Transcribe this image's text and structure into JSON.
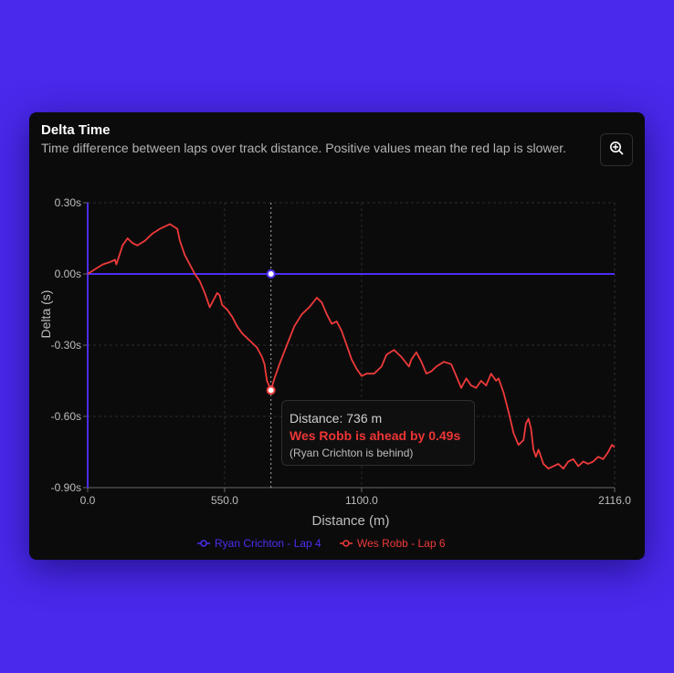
{
  "card": {
    "title": "Delta Time",
    "description": "Time difference between laps over track distance. Positive values mean the red lap is slower."
  },
  "icons": {
    "zoom": "zoom-in-icon"
  },
  "colors": {
    "background": "#4a28ec",
    "card": "#0b0b0c",
    "blue": "#4a2ff0",
    "red": "#ef3a3a",
    "grid": "#2c2c2c",
    "tick": "#bdbdbd"
  },
  "tooltip": {
    "distance": "Distance: 736 m",
    "ahead": "Wes Robb is ahead by 0.49s",
    "behind": "(Ryan Crichton is behind)"
  },
  "chart_data": {
    "type": "line",
    "title": "",
    "xlabel": "Distance (m)",
    "ylabel": "Delta (s)",
    "xlim": [
      0,
      2116
    ],
    "ylim": [
      -0.9,
      0.3
    ],
    "x_ticks": [
      0,
      550,
      1100,
      2116
    ],
    "x_tick_labels": [
      "0.0",
      "550.0",
      "1100.0",
      "2116.0"
    ],
    "y_ticks": [
      0.3,
      0,
      -0.3,
      -0.6,
      -0.9
    ],
    "y_tick_labels": [
      "0.30s",
      "0.00s",
      "-0.30s",
      "-0.60s",
      "-0.90s"
    ],
    "grid": true,
    "legend_position": "bottom-center",
    "hover_x": 736,
    "series": [
      {
        "name": "Ryan Crichton - Lap 4",
        "color": "#4a2ff0",
        "x": [
          0,
          2116
        ],
        "y": [
          0,
          0
        ]
      },
      {
        "name": "Wes Robb - Lap 6",
        "color": "#ef3a3a",
        "x": [
          0,
          30,
          60,
          90,
          110,
          115,
          140,
          160,
          180,
          200,
          230,
          260,
          290,
          330,
          360,
          370,
          390,
          410,
          430,
          450,
          470,
          490,
          510,
          520,
          530,
          540,
          560,
          580,
          600,
          620,
          640,
          660,
          680,
          700,
          710,
          720,
          736,
          750,
          770,
          800,
          830,
          860,
          890,
          920,
          940,
          960,
          980,
          1000,
          1020,
          1040,
          1060,
          1080,
          1100,
          1120,
          1150,
          1180,
          1200,
          1230,
          1260,
          1290,
          1300,
          1320,
          1340,
          1360,
          1380,
          1400,
          1430,
          1460,
          1480,
          1500,
          1520,
          1540,
          1560,
          1580,
          1600,
          1620,
          1640,
          1650,
          1670,
          1690,
          1710,
          1730,
          1750,
          1760,
          1770,
          1780,
          1790,
          1800,
          1810,
          1830,
          1850,
          1870,
          1890,
          1910,
          1930,
          1950,
          1970,
          1990,
          2010,
          2030,
          2050,
          2070,
          2090,
          2105,
          2116
        ],
        "y": [
          0,
          0.02,
          0.04,
          0.05,
          0.06,
          0.04,
          0.12,
          0.15,
          0.13,
          0.12,
          0.14,
          0.17,
          0.19,
          0.21,
          0.19,
          0.14,
          0.08,
          0.04,
          0,
          -0.03,
          -0.08,
          -0.14,
          -0.1,
          -0.08,
          -0.09,
          -0.13,
          -0.15,
          -0.18,
          -0.22,
          -0.25,
          -0.27,
          -0.29,
          -0.31,
          -0.35,
          -0.38,
          -0.45,
          -0.49,
          -0.44,
          -0.38,
          -0.3,
          -0.22,
          -0.17,
          -0.14,
          -0.1,
          -0.12,
          -0.17,
          -0.21,
          -0.2,
          -0.24,
          -0.3,
          -0.36,
          -0.4,
          -0.43,
          -0.42,
          -0.42,
          -0.39,
          -0.34,
          -0.32,
          -0.35,
          -0.39,
          -0.36,
          -0.33,
          -0.37,
          -0.42,
          -0.41,
          -0.39,
          -0.37,
          -0.38,
          -0.43,
          -0.48,
          -0.44,
          -0.47,
          -0.48,
          -0.45,
          -0.47,
          -0.42,
          -0.45,
          -0.44,
          -0.5,
          -0.58,
          -0.67,
          -0.72,
          -0.7,
          -0.63,
          -0.61,
          -0.65,
          -0.74,
          -0.77,
          -0.74,
          -0.8,
          -0.82,
          -0.81,
          -0.8,
          -0.82,
          -0.79,
          -0.78,
          -0.81,
          -0.79,
          -0.8,
          -0.79,
          -0.77,
          -0.78,
          -0.75,
          -0.72,
          -0.73
        ]
      }
    ]
  }
}
